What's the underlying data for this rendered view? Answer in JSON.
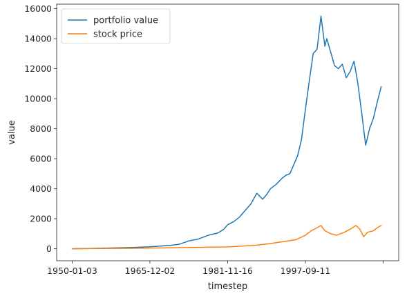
{
  "chart_data": {
    "type": "line",
    "title": "",
    "xlabel": "timestep",
    "ylabel": "value",
    "x_tick_labels": [
      "1950-01-03",
      "1965-12-02",
      "1981-11-16",
      "1997-09-11",
      ""
    ],
    "x_tick_index": [
      0,
      4000,
      8000,
      12000,
      16000
    ],
    "y_ticks": [
      0,
      2000,
      4000,
      6000,
      8000,
      10000,
      12000,
      14000,
      16000
    ],
    "y_tick_labels": [
      "0",
      "2000",
      "4000",
      "6000",
      "8000",
      "10000",
      "12000",
      "14000",
      "16000"
    ],
    "xlim": [
      -800,
      16800
    ],
    "ylim": [
      -800,
      16300
    ],
    "legend": {
      "position": "upper-left"
    },
    "grid": false,
    "series": [
      {
        "name": "portfolio value",
        "color": "#1f77b4",
        "x": [
          0,
          1000,
          2000,
          3000,
          4000,
          5000,
          5500,
          6000,
          6500,
          7000,
          7500,
          7800,
          8000,
          8300,
          8600,
          8800,
          9000,
          9200,
          9500,
          9800,
          10000,
          10200,
          10500,
          10800,
          11000,
          11200,
          11400,
          11600,
          11800,
          12000,
          12200,
          12400,
          12600,
          12800,
          13000,
          13100,
          13300,
          13500,
          13700,
          13900,
          14100,
          14300,
          14500,
          14700,
          14900,
          15100,
          15300,
          15500,
          15700,
          15900
        ],
        "y": [
          0,
          20,
          50,
          80,
          130,
          220,
          300,
          520,
          650,
          900,
          1050,
          1300,
          1600,
          1800,
          2100,
          2400,
          2700,
          3000,
          3700,
          3300,
          3600,
          4000,
          4300,
          4700,
          4900,
          5000,
          5600,
          6200,
          7300,
          9300,
          11200,
          13000,
          13300,
          15500,
          13500,
          14000,
          13100,
          12200,
          12000,
          12300,
          11400,
          11800,
          12500,
          11000,
          9000,
          6900,
          8000,
          8700,
          9800,
          10800
        ]
      },
      {
        "name": "stock price",
        "color": "#ff7f0e",
        "x": [
          0,
          1000,
          2000,
          3000,
          4000,
          5000,
          6000,
          7000,
          8000,
          8800,
          9500,
          10200,
          11000,
          11500,
          12000,
          12300,
          12600,
          12800,
          13000,
          13300,
          13600,
          14000,
          14300,
          14600,
          14800,
          15000,
          15200,
          15500,
          15700,
          15900
        ],
        "y": [
          0,
          10,
          20,
          30,
          45,
          60,
          80,
          100,
          120,
          180,
          240,
          350,
          500,
          600,
          900,
          1200,
          1400,
          1550,
          1200,
          1000,
          900,
          1100,
          1300,
          1550,
          1300,
          800,
          1100,
          1200,
          1400,
          1550
        ]
      }
    ]
  }
}
